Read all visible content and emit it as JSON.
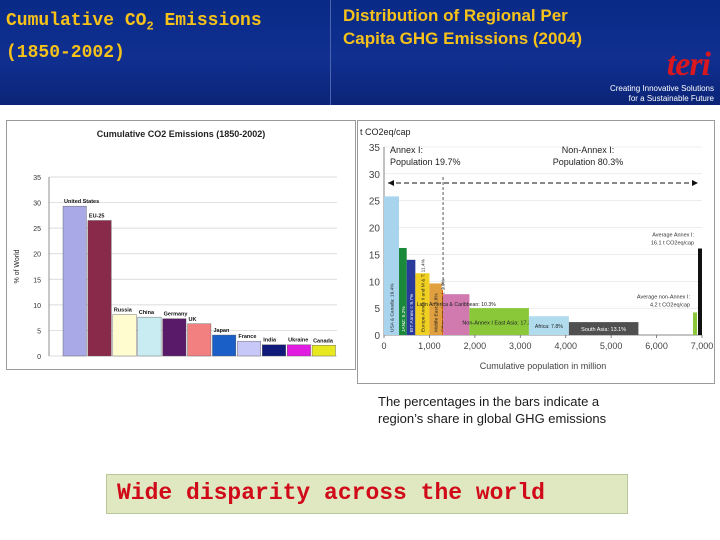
{
  "header": {
    "left_title_line1_pre": "Cumulative CO",
    "left_title_sub": "2",
    "left_title_line1_post": " Emissions",
    "left_title_line2": "(1850-2002)",
    "right_title_line1": "Distribution of Regional Per",
    "right_title_line2": "Capita GHG Emissions (2004)",
    "logo_mark": "teri",
    "logo_line1": "Creating Innovative Solutions",
    "logo_line2": "for a Sustainable Future"
  },
  "caption_line1": "The percentages in the bars indicate a",
  "caption_line2": "region’s share in global GHG emissions",
  "banner": "Wide disparity across the world",
  "colors": {
    "header_bg": "#102f90",
    "title": "#f6c21a",
    "banner_bg": "#dfe8c0",
    "banner_text": "#d10a1a",
    "logo_red": "#d9171e"
  },
  "chart_data": [
    {
      "type": "bar",
      "title": "Cumulative CO2 Emissions (1850-2002)",
      "ylabel": "% of World",
      "ylim": [
        0,
        35
      ],
      "yticks": [
        0,
        5,
        10,
        15,
        20,
        25,
        30,
        35
      ],
      "grid": true,
      "categories": [
        "United States",
        "EU-25",
        "Russia",
        "China",
        "Germany",
        "UK",
        "Japan",
        "France",
        "India",
        "Ukraine",
        "Canada"
      ],
      "values": [
        29.3,
        26.5,
        8.1,
        7.6,
        7.3,
        6.3,
        4.1,
        2.9,
        2.2,
        2.2,
        2.1
      ],
      "bar_colors": [
        "#a9a9e8",
        "#8a2a4a",
        "#fffcd0",
        "#c8ecf2",
        "#5a1a6a",
        "#f28080",
        "#1a5ec8",
        "#c8c8f8",
        "#101a7a",
        "#e01ce0",
        "#e8e820"
      ]
    },
    {
      "type": "bar",
      "title": "",
      "ylabel": "t CO2eq/cap",
      "xlabel": "Cumulative population in million",
      "ylim": [
        0,
        35
      ],
      "yticks": [
        0,
        5,
        10,
        15,
        20,
        25,
        30,
        35
      ],
      "xlim": [
        0,
        7000
      ],
      "xticks": [
        0,
        1000,
        2000,
        3000,
        4000,
        5000,
        6000,
        7000
      ],
      "xtick_labels": [
        "0",
        "1,000",
        "2,000",
        "3,000",
        "4,000",
        "5,000",
        "6,000",
        "7,000"
      ],
      "groups": [
        {
          "label": "Annex I:",
          "population": "Population 19.7%"
        },
        {
          "label": "Non-Annex I:",
          "population": "Population 80.3%"
        }
      ],
      "bars": [
        {
          "x0": 0,
          "x1": 330,
          "value": 25.8,
          "label": "USA & Canada: 19.4%",
          "color": "#a8d4ee"
        },
        {
          "x0": 330,
          "x1": 500,
          "value": 16.2,
          "label": "JANZ: 5.2%",
          "color": "#1a8a3a"
        },
        {
          "x0": 500,
          "x1": 690,
          "value": 14.0,
          "label": "EIT Annex I: 9.7%",
          "color": "#2a3a9a"
        },
        {
          "x0": 690,
          "x1": 1000,
          "value": 11.5,
          "label": "Europe Annex II and M & T: 11.4%",
          "color": "#f0d020"
        },
        {
          "x0": 1000,
          "x1": 1270,
          "value": 9.6,
          "label": "Middle East: 3.8%",
          "color": "#e0a040"
        },
        {
          "x0": 1270,
          "x1": 1300,
          "value": 8.4,
          "label": "Other non-Annex I: 2.0%",
          "color": "#e07000"
        },
        {
          "x0": 1300,
          "x1": 1880,
          "value": 7.6,
          "label": "Latin America & Caribbean: 10.3%",
          "color": "#d07ab0"
        },
        {
          "x0": 1880,
          "x1": 3190,
          "value": 5.0,
          "label": "Non-Annex I East Asia: 17.3%",
          "color": "#8ac83a"
        },
        {
          "x0": 3190,
          "x1": 4070,
          "value": 3.5,
          "label": "Africa: 7.8%",
          "color": "#b0dcee"
        },
        {
          "x0": 4070,
          "x1": 5600,
          "value": 2.4,
          "label": "South Asia: 13.1%",
          "color": "#505050"
        }
      ],
      "annotations": [
        {
          "text": "Average Annex I:",
          "value_text": "16.1 t CO2eq/cap",
          "value": 16.1
        },
        {
          "text": "Average non-Annex I:",
          "value_text": "4.2 t CO2eq/cap",
          "value": 4.2
        }
      ]
    }
  ]
}
